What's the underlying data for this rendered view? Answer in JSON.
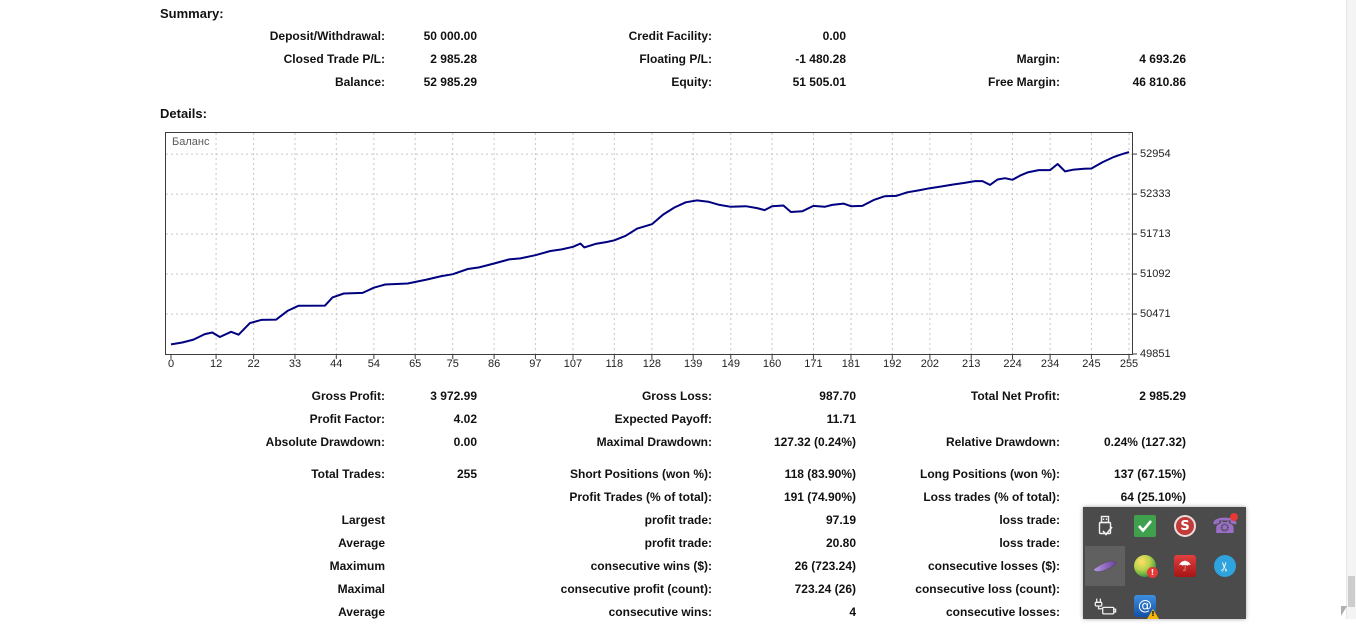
{
  "summary": {
    "title": "Summary:",
    "rows": [
      {
        "l1": "Deposit/Withdrawal:",
        "v1": "50 000.00",
        "l2": "Credit Facility:",
        "v2": "0.00",
        "l3": "",
        "v3": ""
      },
      {
        "l1": "Closed Trade P/L:",
        "v1": "2 985.28",
        "l2": "Floating P/L:",
        "v2": "-1 480.28",
        "l3": "Margin:",
        "v3": "4 693.26"
      },
      {
        "l1": "Balance:",
        "v1": "52 985.29",
        "l2": "Equity:",
        "v2": "51 505.01",
        "l3": "Free Margin:",
        "v3": "46 810.86"
      }
    ]
  },
  "details": {
    "title": "Details:"
  },
  "chart_data": {
    "type": "line",
    "title": "Balance curve",
    "legend_label": "Баланс",
    "line_color": "#000080",
    "grid": true,
    "grid_color": "#c6c6c6",
    "x_ticks": [
      0,
      12,
      22,
      33,
      44,
      54,
      65,
      75,
      86,
      97,
      107,
      118,
      128,
      139,
      149,
      160,
      171,
      181,
      192,
      202,
      213,
      224,
      234,
      245,
      255
    ],
    "y_ticks": [
      49851,
      50471,
      51092,
      51713,
      52333,
      52954
    ],
    "xlim": [
      0,
      256
    ],
    "ylim": [
      49851,
      53281
    ],
    "series": [
      {
        "name": "Баланс",
        "points": [
          [
            0,
            50000
          ],
          [
            3,
            50030
          ],
          [
            6,
            50075
          ],
          [
            9,
            50160
          ],
          [
            11,
            50185
          ],
          [
            13,
            50115
          ],
          [
            16,
            50195
          ],
          [
            18,
            50150
          ],
          [
            21,
            50330
          ],
          [
            24,
            50380
          ],
          [
            28,
            50385
          ],
          [
            31,
            50520
          ],
          [
            34,
            50600
          ],
          [
            41,
            50602
          ],
          [
            43,
            50730
          ],
          [
            46,
            50790
          ],
          [
            51,
            50800
          ],
          [
            54,
            50880
          ],
          [
            57,
            50930
          ],
          [
            63,
            50945
          ],
          [
            68,
            51005
          ],
          [
            72,
            51060
          ],
          [
            75,
            51090
          ],
          [
            79,
            51170
          ],
          [
            82,
            51195
          ],
          [
            86,
            51255
          ],
          [
            90,
            51320
          ],
          [
            93,
            51335
          ],
          [
            97,
            51385
          ],
          [
            101,
            51450
          ],
          [
            104,
            51475
          ],
          [
            107,
            51515
          ],
          [
            109,
            51565
          ],
          [
            110,
            51505
          ],
          [
            113,
            51560
          ],
          [
            116,
            51590
          ],
          [
            118,
            51615
          ],
          [
            121,
            51685
          ],
          [
            124,
            51795
          ],
          [
            128,
            51865
          ],
          [
            131,
            52015
          ],
          [
            134,
            52125
          ],
          [
            137,
            52205
          ],
          [
            140,
            52235
          ],
          [
            143,
            52215
          ],
          [
            146,
            52165
          ],
          [
            149,
            52135
          ],
          [
            153,
            52145
          ],
          [
            156,
            52115
          ],
          [
            158,
            52085
          ],
          [
            160,
            52145
          ],
          [
            163,
            52155
          ],
          [
            165,
            52055
          ],
          [
            168,
            52065
          ],
          [
            171,
            52150
          ],
          [
            174,
            52135
          ],
          [
            176,
            52165
          ],
          [
            179,
            52185
          ],
          [
            181,
            52145
          ],
          [
            184,
            52150
          ],
          [
            187,
            52240
          ],
          [
            190,
            52300
          ],
          [
            193,
            52305
          ],
          [
            196,
            52360
          ],
          [
            199,
            52390
          ],
          [
            202,
            52425
          ],
          [
            205,
            52450
          ],
          [
            208,
            52480
          ],
          [
            211,
            52505
          ],
          [
            214,
            52535
          ],
          [
            216,
            52535
          ],
          [
            218,
            52475
          ],
          [
            220,
            52560
          ],
          [
            222,
            52580
          ],
          [
            224,
            52555
          ],
          [
            226,
            52620
          ],
          [
            228,
            52670
          ],
          [
            231,
            52705
          ],
          [
            234,
            52705
          ],
          [
            236,
            52800
          ],
          [
            238,
            52685
          ],
          [
            240,
            52710
          ],
          [
            243,
            52725
          ],
          [
            245,
            52730
          ],
          [
            248,
            52830
          ],
          [
            251,
            52910
          ],
          [
            253,
            52950
          ],
          [
            255,
            52985
          ]
        ]
      }
    ]
  },
  "stats": {
    "rows": [
      {
        "l1": "Gross Profit:",
        "v1": "3 972.99",
        "l2": "Gross Loss:",
        "v2": "987.70",
        "l3": "Total Net Profit:",
        "v3": "2 985.29"
      },
      {
        "l1": "Profit Factor:",
        "v1": "4.02",
        "l2": "Expected Payoff:",
        "v2": "11.71",
        "l3": "",
        "v3": ""
      },
      {
        "l1": "Absolute Drawdown:",
        "v1": "0.00",
        "l2": "Maximal Drawdown:",
        "v2": "127.32 (0.24%)",
        "l3": "Relative Drawdown:",
        "v3": "0.24% (127.32)"
      },
      {
        "l1": "Total Trades:",
        "v1": "255",
        "l2": "Short Positions (won %):",
        "v2": "118 (83.90%)",
        "l3": "Long Positions (won %):",
        "v3": "137 (67.15%)"
      },
      {
        "l1": "",
        "v1": "",
        "l2": "Profit Trades (% of total):",
        "v2": "191 (74.90%)",
        "l3": "Loss trades (% of total):",
        "v3": "64 (25.10%)"
      },
      {
        "l1": "Largest",
        "v1": "",
        "l2": "profit trade:",
        "v2": "97.19",
        "l3": "loss trade:",
        "v3": ""
      },
      {
        "l1": "Average",
        "v1": "",
        "l2": "profit trade:",
        "v2": "20.80",
        "l3": "loss trade:",
        "v3": ""
      },
      {
        "l1": "Maximum",
        "v1": "",
        "l2": "consecutive wins ($):",
        "v2": "26 (723.24)",
        "l3": "consecutive losses ($):",
        "v3": ""
      },
      {
        "l1": "Maximal",
        "v1": "",
        "l2": "consecutive profit (count):",
        "v2": "723.24 (26)",
        "l3": "consecutive loss (count):",
        "v3": ""
      },
      {
        "l1": "Average",
        "v1": "",
        "l2": "consecutive wins:",
        "v2": "4",
        "l3": "consecutive losses:",
        "v3": ""
      }
    ]
  },
  "tray": {
    "background": "#4b4b4b",
    "icons": [
      {
        "name": "usb-device-icon",
        "row": 0,
        "col": 0,
        "highlighted": false
      },
      {
        "name": "green-check-icon",
        "row": 0,
        "col": 1,
        "highlighted": false
      },
      {
        "name": "spybot-icon",
        "row": 0,
        "col": 2,
        "highlighted": false
      },
      {
        "name": "viber-icon",
        "row": 0,
        "col": 3,
        "highlighted": false
      },
      {
        "name": "feather-icon",
        "row": 1,
        "col": 0,
        "highlighted": true
      },
      {
        "name": "alert-orb-icon",
        "row": 1,
        "col": 1,
        "highlighted": false
      },
      {
        "name": "avira-umbrella-icon",
        "row": 1,
        "col": 2,
        "highlighted": false
      },
      {
        "name": "scissors-circle-icon",
        "row": 1,
        "col": 3,
        "highlighted": false
      },
      {
        "name": "power-plug-icon",
        "row": 2,
        "col": 0,
        "highlighted": false
      },
      {
        "name": "email-warning-icon",
        "row": 2,
        "col": 1,
        "highlighted": false
      }
    ]
  },
  "colors": {
    "chart_line": "#000080",
    "grid": "#c6c6c6",
    "tray_background": "#4b4b4b",
    "tray_highlight": "#606060"
  }
}
